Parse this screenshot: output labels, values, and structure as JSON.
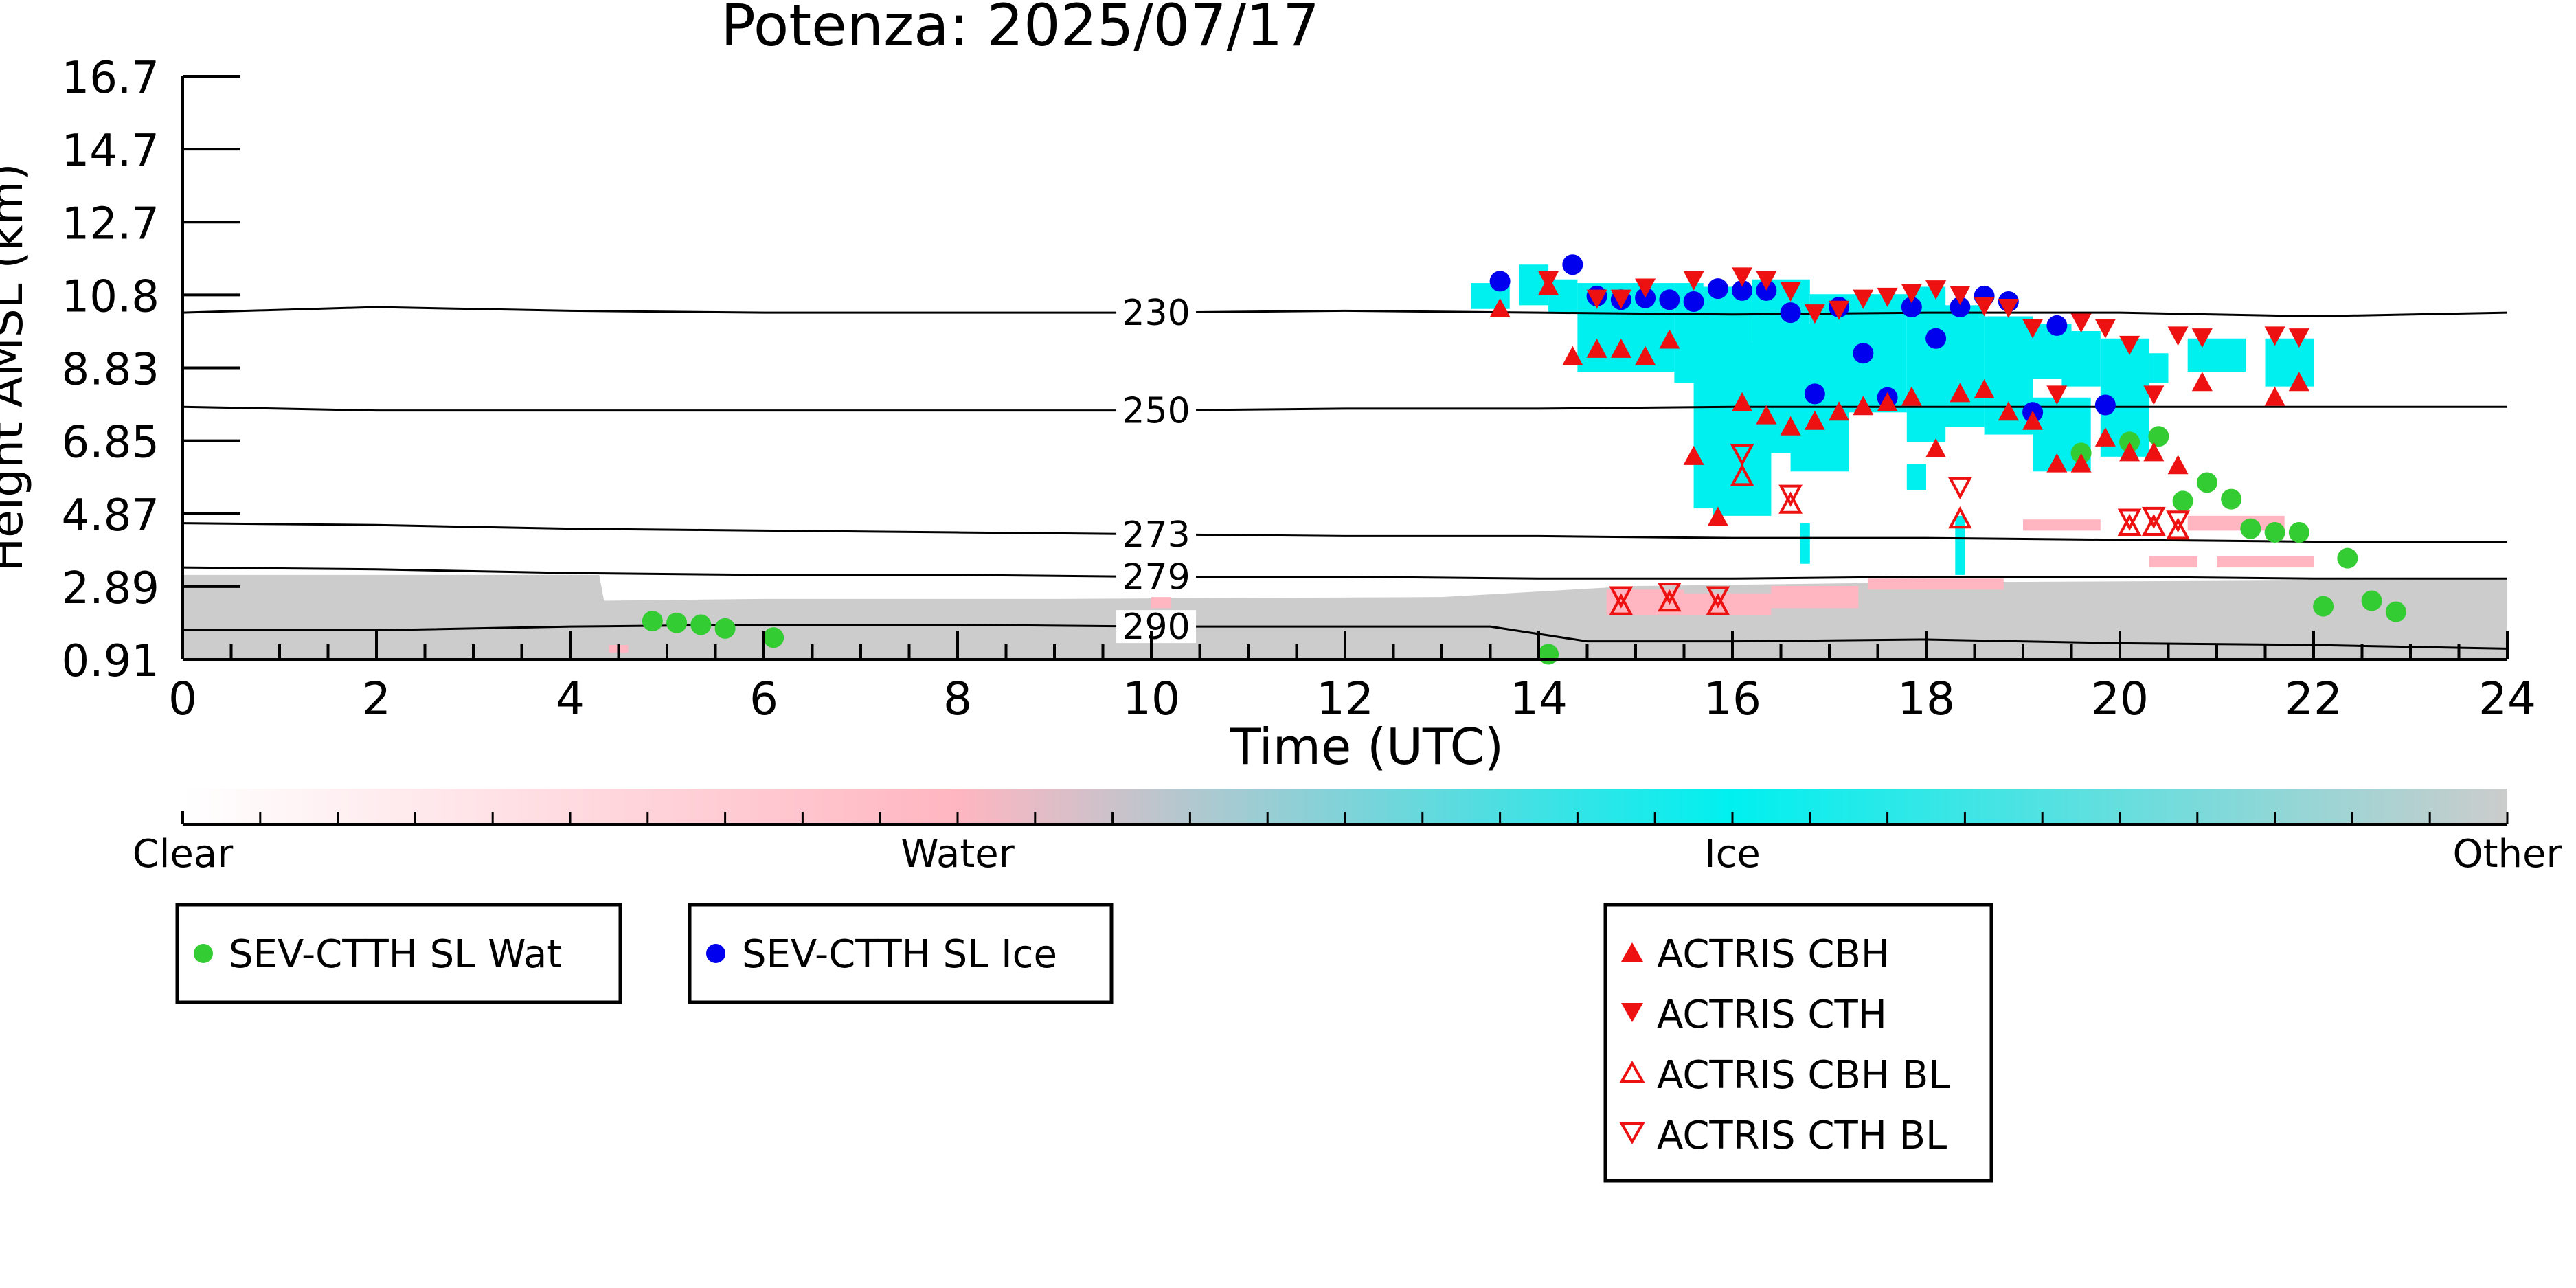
{
  "chart_data": {
    "type": "scatter",
    "title": "Potenza: 2025/07/17",
    "xlabel": "Time (UTC)",
    "ylabel": "Height AMSL (km)",
    "xlim": [
      0,
      24
    ],
    "ylim": [
      0.91,
      16.7
    ],
    "x_ticks": [
      "0",
      "2",
      "4",
      "6",
      "8",
      "10",
      "12",
      "14",
      "16",
      "18",
      "20",
      "22",
      "24"
    ],
    "y_ticks": [
      "0.91",
      "2.89",
      "4.87",
      "6.85",
      "8.83",
      "10.8",
      "12.7",
      "14.7",
      "16.7"
    ],
    "colorbar": {
      "labels": [
        "Clear",
        "Water",
        "Ice",
        "Other"
      ],
      "colors": {
        "clear": "#ffffff",
        "water": "#ffb6c1",
        "ice": "#00f0f0",
        "other": "#cccccc"
      }
    },
    "isotherms": [
      {
        "label": "230",
        "x": [
          0,
          2,
          4,
          6,
          8,
          10,
          12,
          14,
          16,
          18,
          20,
          22,
          24
        ],
        "y": [
          10.3,
          10.45,
          10.35,
          10.3,
          10.3,
          10.3,
          10.35,
          10.3,
          10.25,
          10.3,
          10.3,
          10.2,
          10.3
        ]
      },
      {
        "label": "250",
        "x": [
          0,
          2,
          4,
          6,
          8,
          10,
          12,
          14,
          16,
          18,
          20,
          22,
          24
        ],
        "y": [
          7.75,
          7.65,
          7.65,
          7.65,
          7.65,
          7.65,
          7.7,
          7.7,
          7.75,
          7.75,
          7.75,
          7.75,
          7.75
        ]
      },
      {
        "label": "273",
        "x": [
          0,
          2,
          4,
          6,
          8,
          10,
          12,
          14,
          16,
          18,
          20,
          22,
          24
        ],
        "y": [
          4.6,
          4.55,
          4.45,
          4.4,
          4.35,
          4.3,
          4.25,
          4.25,
          4.2,
          4.2,
          4.15,
          4.1,
          4.1
        ]
      },
      {
        "label": "279",
        "x": [
          0,
          2,
          4,
          6,
          8,
          10,
          12,
          14,
          16,
          18,
          20,
          22,
          24
        ],
        "y": [
          3.4,
          3.35,
          3.25,
          3.2,
          3.2,
          3.15,
          3.15,
          3.1,
          3.1,
          3.15,
          3.15,
          3.1,
          3.1
        ]
      },
      {
        "label": "290",
        "x": [
          0,
          2,
          4,
          6,
          8,
          10,
          12,
          13.5,
          14.5,
          16,
          18,
          20,
          22,
          24
        ],
        "y": [
          1.7,
          1.7,
          1.8,
          1.85,
          1.85,
          1.8,
          1.8,
          1.8,
          1.4,
          1.4,
          1.45,
          1.35,
          1.3,
          1.2
        ]
      }
    ],
    "series": [
      {
        "name": "SEV-CTTH SL Wat",
        "marker": "circle",
        "color": "#33cc33",
        "x": [
          4.85,
          5.1,
          5.35,
          5.6,
          6.1,
          14.1,
          19.6,
          20.1,
          20.4,
          20.65,
          20.9,
          21.15,
          21.35,
          21.6,
          21.85,
          22.35,
          22.1,
          22.6,
          22.85
        ],
        "y": [
          1.95,
          1.9,
          1.85,
          1.75,
          1.5,
          1.05,
          6.5,
          6.8,
          6.95,
          5.2,
          5.7,
          5.25,
          4.45,
          4.35,
          4.35,
          3.65,
          2.35,
          2.5,
          2.2
        ]
      },
      {
        "name": "SEV-CTTH SL Ice",
        "marker": "circle",
        "color": "#0000ee",
        "x": [
          13.6,
          14.35,
          14.6,
          14.85,
          15.1,
          15.35,
          15.6,
          15.85,
          16.1,
          16.35,
          16.6,
          16.85,
          17.1,
          17.35,
          17.6,
          17.85,
          18.1,
          18.35,
          18.6,
          18.85,
          19.1,
          19.35,
          19.85
        ],
        "y": [
          11.15,
          11.6,
          10.75,
          10.65,
          10.7,
          10.65,
          10.6,
          10.95,
          10.9,
          10.9,
          10.3,
          8.1,
          10.45,
          9.2,
          8.0,
          10.45,
          9.6,
          10.45,
          10.75,
          10.6,
          7.6,
          9.95,
          7.8
        ]
      },
      {
        "name": "ACTRIS CBH",
        "marker": "triangle-up",
        "color": "#ee1111",
        "x": [
          13.6,
          14.1,
          14.35,
          14.6,
          14.85,
          15.1,
          15.35,
          15.6,
          15.85,
          16.1,
          16.35,
          16.6,
          16.85,
          17.1,
          17.35,
          17.6,
          17.85,
          18.1,
          18.35,
          18.6,
          18.85,
          19.1,
          19.35,
          19.6,
          19.85,
          20.1,
          20.35,
          20.6,
          20.85,
          21.6,
          21.85
        ],
        "y": [
          10.4,
          11.0,
          9.1,
          9.3,
          9.3,
          9.1,
          9.55,
          6.4,
          4.75,
          7.85,
          7.5,
          7.2,
          7.35,
          7.6,
          7.75,
          7.85,
          8.0,
          6.6,
          8.1,
          8.2,
          7.6,
          7.35,
          6.2,
          6.2,
          6.9,
          6.5,
          6.5,
          6.15,
          8.4,
          8.0,
          8.4
        ]
      },
      {
        "name": "ACTRIS CTH",
        "marker": "triangle-down",
        "color": "#ee1111",
        "x": [
          14.1,
          14.6,
          14.85,
          15.1,
          15.6,
          16.1,
          16.35,
          16.6,
          16.85,
          17.1,
          17.35,
          17.6,
          17.85,
          18.1,
          18.35,
          18.6,
          18.85,
          19.1,
          19.35,
          19.6,
          19.85,
          20.1,
          20.35,
          20.6,
          20.85,
          21.6,
          21.85
        ],
        "y": [
          11.2,
          10.7,
          10.7,
          11.0,
          11.2,
          11.3,
          11.2,
          10.9,
          10.3,
          10.4,
          10.7,
          10.75,
          10.85,
          10.95,
          10.8,
          10.5,
          10.45,
          9.9,
          8.1,
          10.05,
          9.9,
          9.45,
          8.1,
          9.7,
          9.65,
          9.7,
          9.65
        ]
      },
      {
        "name": "ACTRIS CBH BL",
        "marker": "triangle-up-open",
        "color": "#ee1111",
        "x": [
          14.85,
          15.35,
          15.85,
          16.1,
          16.6,
          18.35,
          20.1,
          20.35,
          20.6
        ],
        "y": [
          2.35,
          2.45,
          2.35,
          5.85,
          5.1,
          4.7,
          4.5,
          4.5,
          4.4
        ]
      },
      {
        "name": "ACTRIS CTH BL",
        "marker": "triangle-down-open",
        "color": "#ee1111",
        "x": [
          14.85,
          15.35,
          15.85,
          16.1,
          16.6,
          18.35,
          20.1,
          20.35,
          20.6
        ],
        "y": [
          2.65,
          2.75,
          2.65,
          6.5,
          5.4,
          5.6,
          4.75,
          4.8,
          4.7
        ]
      }
    ],
    "regions": {
      "other_band_top_km": [
        [
          0,
          3.2
        ],
        [
          4.3,
          3.2
        ],
        [
          4.35,
          2.5
        ],
        [
          6,
          2.55
        ],
        [
          9,
          2.55
        ],
        [
          13,
          2.6
        ],
        [
          15,
          2.9
        ],
        [
          18,
          3.0
        ],
        [
          22,
          3.05
        ],
        [
          24,
          3.1
        ]
      ],
      "ice_blocks": [
        [
          13.3,
          13.7,
          10.4,
          11.1
        ],
        [
          13.8,
          14.1,
          10.5,
          11.6
        ],
        [
          14.1,
          14.4,
          10.3,
          11.2
        ],
        [
          14.4,
          15.4,
          8.7,
          11.1
        ],
        [
          15.4,
          15.7,
          8.4,
          11.1
        ],
        [
          15.6,
          16.2,
          5.0,
          11.0
        ],
        [
          15.8,
          16.4,
          4.8,
          9.5
        ],
        [
          16.2,
          16.8,
          6.5,
          11.2
        ],
        [
          16.6,
          17.2,
          6.0,
          10.0
        ],
        [
          16.8,
          17.8,
          7.6,
          10.8
        ],
        [
          17.8,
          18.2,
          6.8,
          11.0
        ],
        [
          18.0,
          18.6,
          7.2,
          10.5
        ],
        [
          18.6,
          19.1,
          7.0,
          10.2
        ],
        [
          19.0,
          19.5,
          8.5,
          10.0
        ],
        [
          19.1,
          19.7,
          6.0,
          8.0
        ],
        [
          19.4,
          19.8,
          8.3,
          9.8
        ],
        [
          19.8,
          20.3,
          6.4,
          9.6
        ],
        [
          20.3,
          20.5,
          8.4,
          9.2
        ],
        [
          20.7,
          21.3,
          8.7,
          9.6
        ],
        [
          21.5,
          22.0,
          8.3,
          9.6
        ],
        [
          17.8,
          18.0,
          5.5,
          6.2
        ],
        [
          18.3,
          18.4,
          3.2,
          4.8
        ],
        [
          16.7,
          16.8,
          3.5,
          4.6
        ]
      ],
      "water_blocks": [
        [
          4.4,
          4.6,
          1.1,
          1.3
        ],
        [
          10.0,
          10.2,
          2.3,
          2.6
        ],
        [
          14.7,
          15.5,
          2.1,
          2.8
        ],
        [
          15.5,
          16.4,
          2.1,
          2.7
        ],
        [
          16.4,
          17.3,
          2.3,
          2.9
        ],
        [
          17.4,
          18.8,
          2.8,
          3.1
        ],
        [
          19.0,
          19.8,
          4.4,
          4.7
        ],
        [
          20.7,
          21.7,
          4.4,
          4.8
        ],
        [
          20.3,
          20.8,
          3.4,
          3.7
        ],
        [
          21.0,
          22.0,
          3.4,
          3.7
        ]
      ]
    }
  },
  "legend1": {
    "wat_label": "SEV-CTTH SL Wat",
    "ice_label": "SEV-CTTH SL Ice"
  },
  "legend2": {
    "cbh_label": "ACTRIS CBH",
    "cth_label": "ACTRIS CTH",
    "cbh_bl_label": "ACTRIS CBH BL",
    "cth_bl_label": "ACTRIS CTH BL"
  }
}
